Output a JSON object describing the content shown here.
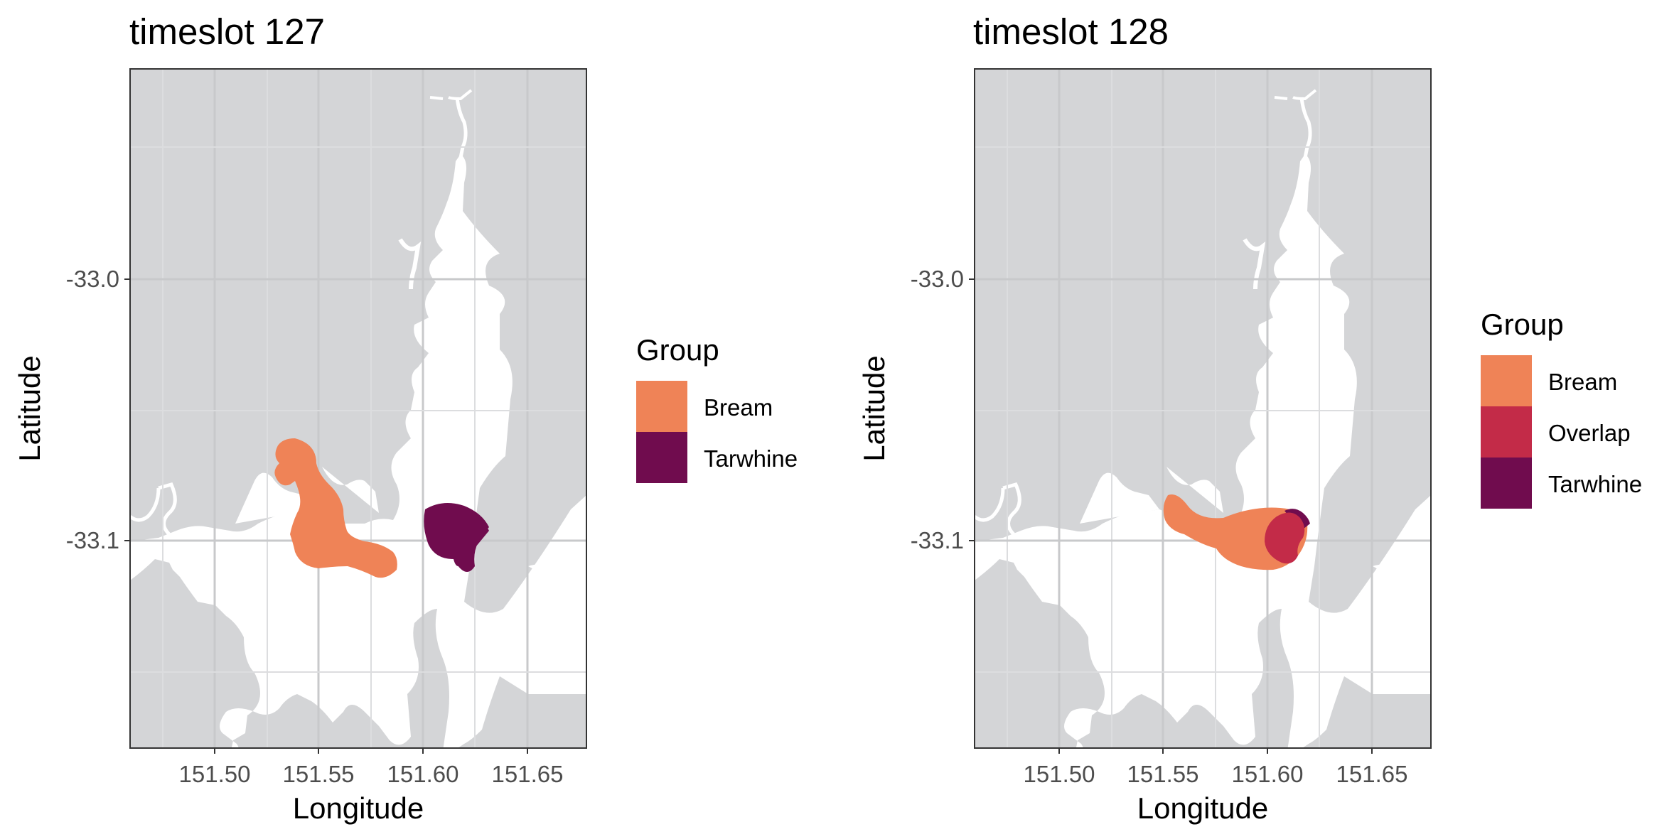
{
  "colors": {
    "land": "#d4d5d7",
    "water": "#ffffff",
    "grid_major": "#c8c9cb",
    "grid_minor": "#dcdddf",
    "border": "#333333",
    "bream": "#ef8357",
    "overlap": "#c32b48",
    "tarwhine": "#700c4e"
  },
  "chart_data": [
    {
      "type": "map",
      "title": "timeslot 127",
      "xlabel": "Longitude",
      "ylabel": "Latitude",
      "xlim": [
        151.463,
        151.678
      ],
      "ylim": [
        -33.183,
        -32.923
      ],
      "x_ticks": [
        "151.50",
        "151.55",
        "151.60",
        "151.65"
      ],
      "y_ticks": [
        "-33.0",
        "-33.1"
      ],
      "grid": true,
      "legend": {
        "title": "Group",
        "position": "right",
        "entries": [
          {
            "label": "Bream",
            "color": "#ef8357"
          },
          {
            "label": "Tarwhine",
            "color": "#700c4e"
          }
        ]
      },
      "regions": [
        {
          "group": "Bream",
          "description_free": true
        },
        {
          "group": "Tarwhine",
          "description_free": true
        }
      ]
    },
    {
      "type": "map",
      "title": "timeslot 128",
      "xlabel": "Longitude",
      "ylabel": "Latitude",
      "xlim": [
        151.463,
        151.678
      ],
      "ylim": [
        -33.183,
        -32.923
      ],
      "x_ticks": [
        "151.50",
        "151.55",
        "151.60",
        "151.65"
      ],
      "y_ticks": [
        "-33.0",
        "-33.1"
      ],
      "grid": true,
      "legend": {
        "title": "Group",
        "position": "right",
        "entries": [
          {
            "label": "Bream",
            "color": "#ef8357"
          },
          {
            "label": "Overlap",
            "color": "#c32b48"
          },
          {
            "label": "Tarwhine",
            "color": "#700c4e"
          }
        ]
      },
      "regions": [
        {
          "group": "Bream",
          "description_free": true
        },
        {
          "group": "Overlap",
          "description_free": true
        },
        {
          "group": "Tarwhine",
          "description_free": true
        }
      ]
    }
  ]
}
